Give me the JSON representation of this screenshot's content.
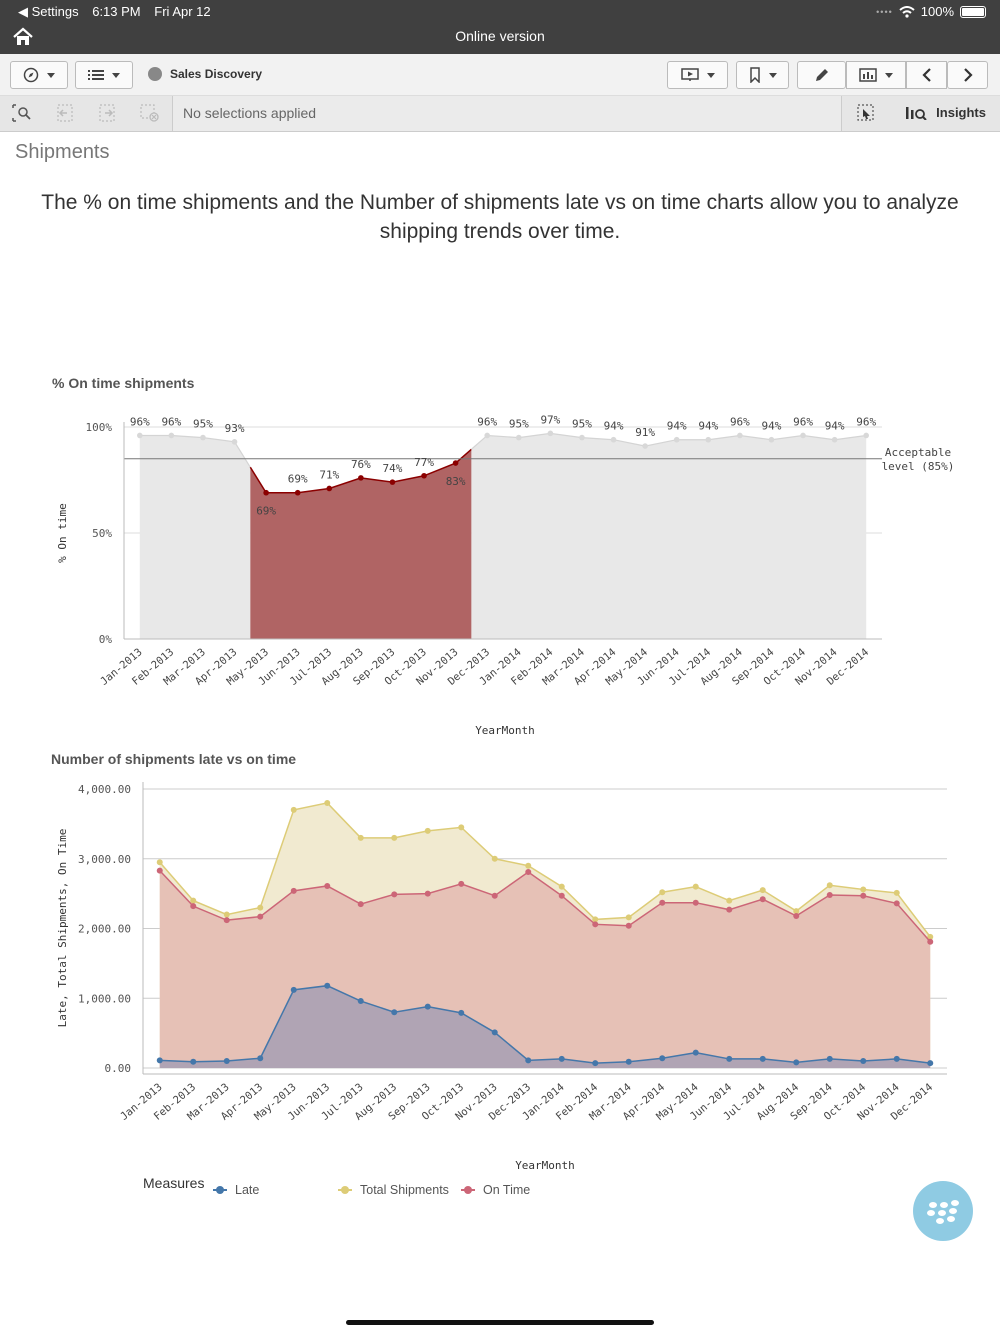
{
  "status": {
    "back_label": "◀ Settings",
    "time": "6:13 PM",
    "date": "Fri Apr 12",
    "battery": "100%",
    "window_title": "Online version"
  },
  "toolbar": {
    "app_name": "Sales Discovery"
  },
  "selections": {
    "text": "No selections applied",
    "insights_label": "Insights"
  },
  "sheet": {
    "title": "Shipments",
    "description": "The % on time shipments and the Number of shipments late vs on time charts allow you to analyze shipping trends over time."
  },
  "colors": {
    "late": "#4477aa",
    "total": "#ddcc77",
    "on_time": "#cc6677",
    "dark_red": "#8b0000",
    "grey": "#e8e8e8"
  },
  "chart_data": [
    {
      "type": "area",
      "title": "% On time shipments",
      "xlabel": "YearMonth",
      "ylabel": "% On time",
      "ylim": [
        0,
        100
      ],
      "yticks": [
        "0%",
        "50%",
        "100%"
      ],
      "categories": [
        "Jan-2013",
        "Feb-2013",
        "Mar-2013",
        "Apr-2013",
        "May-2013",
        "Jun-2013",
        "Jul-2013",
        "Aug-2013",
        "Sep-2013",
        "Oct-2013",
        "Nov-2013",
        "Dec-2013",
        "Jan-2014",
        "Feb-2014",
        "Mar-2014",
        "Apr-2014",
        "May-2014",
        "Jun-2014",
        "Jul-2014",
        "Aug-2014",
        "Sep-2014",
        "Oct-2014",
        "Nov-2014",
        "Dec-2014"
      ],
      "values": [
        96,
        96,
        95,
        93,
        69,
        69,
        71,
        76,
        74,
        77,
        83,
        96,
        95,
        97,
        95,
        94,
        91,
        94,
        94,
        96,
        94,
        96,
        94,
        96
      ],
      "labels": [
        "96%",
        "96%",
        "95%",
        "93%",
        "69%",
        "69%",
        "71%",
        "76%",
        "74%",
        "77%",
        "83%",
        "96%",
        "95%",
        "97%",
        "95%",
        "94%",
        "91%",
        "94%",
        "94%",
        "96%",
        "94%",
        "96%",
        "94%",
        "96%"
      ],
      "reference_line": {
        "value": 85,
        "label_line1": "Acceptable",
        "label_line2": "level (85%)"
      },
      "grid": true
    },
    {
      "type": "area",
      "title": "Number of shipments late vs on time",
      "xlabel": "YearMonth",
      "ylabel": "Late, Total Shipments, On Time",
      "ylim": [
        0,
        4000
      ],
      "yticks": [
        "0.00",
        "1,000.00",
        "2,000.00",
        "3,000.00",
        "4,000.00"
      ],
      "categories": [
        "Jan-2013",
        "Feb-2013",
        "Mar-2013",
        "Apr-2013",
        "May-2013",
        "Jun-2013",
        "Jul-2013",
        "Aug-2013",
        "Sep-2013",
        "Oct-2013",
        "Nov-2013",
        "Dec-2013",
        "Jan-2014",
        "Feb-2014",
        "Mar-2014",
        "Apr-2014",
        "May-2014",
        "Jun-2014",
        "Jul-2014",
        "Aug-2014",
        "Sep-2014",
        "Oct-2014",
        "Nov-2014",
        "Dec-2014"
      ],
      "series": [
        {
          "name": "Total Shipments",
          "values": [
            2950,
            2400,
            2200,
            2300,
            3700,
            3800,
            3300,
            3300,
            3400,
            3450,
            3000,
            2900,
            2600,
            2130,
            2160,
            2520,
            2600,
            2400,
            2550,
            2250,
            2620,
            2560,
            2510,
            1880
          ]
        },
        {
          "name": "On Time",
          "values": [
            2830,
            2320,
            2120,
            2170,
            2540,
            2610,
            2350,
            2490,
            2500,
            2640,
            2470,
            2810,
            2470,
            2060,
            2040,
            2370,
            2370,
            2270,
            2420,
            2180,
            2480,
            2470,
            2360,
            1810
          ]
        },
        {
          "name": "Late",
          "values": [
            110,
            90,
            100,
            140,
            1120,
            1180,
            960,
            800,
            880,
            790,
            510,
            110,
            130,
            70,
            90,
            140,
            220,
            130,
            130,
            80,
            130,
            100,
            130,
            70
          ]
        }
      ],
      "legend_title": "Measures",
      "legend": [
        "Late",
        "Total Shipments",
        "On Time"
      ],
      "grid": true
    }
  ]
}
